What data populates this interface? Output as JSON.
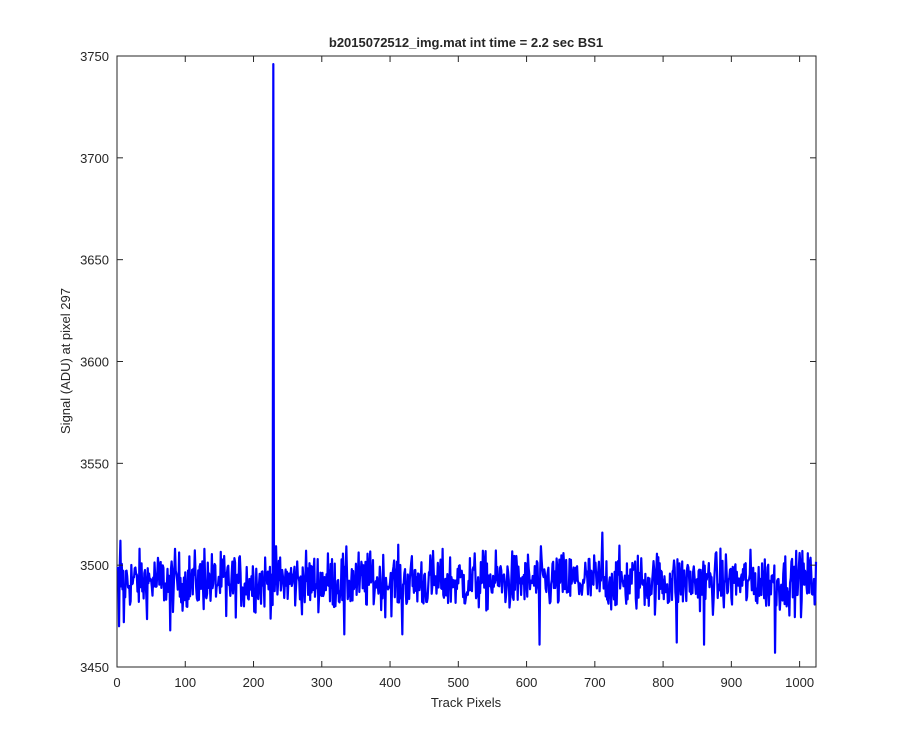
{
  "chart_data": {
    "type": "line",
    "title": "b2015072512_img.mat int time = 2.2 sec   BS1",
    "xlabel": "Track Pixels",
    "ylabel": "Signal (ADU) at pixel 297",
    "xlim": [
      0,
      1024
    ],
    "ylim": [
      3450,
      3750
    ],
    "xticks": [
      0,
      100,
      200,
      300,
      400,
      500,
      600,
      700,
      800,
      900,
      1000
    ],
    "yticks": [
      3450,
      3500,
      3550,
      3600,
      3650,
      3700,
      3750
    ],
    "grid": false,
    "line_color": "#0000ff",
    "axis_color": "#262626",
    "series": [
      {
        "x_start": 1,
        "x_step": 1,
        "baseline": 3492,
        "noise_amplitude": 10,
        "spike": {
          "x": 229,
          "y": 3746
        },
        "sampled_extremes": [
          {
            "x": 3,
            "y": 3470
          },
          {
            "x": 5,
            "y": 3512
          },
          {
            "x": 10,
            "y": 3472
          },
          {
            "x": 78,
            "y": 3468
          },
          {
            "x": 128,
            "y": 3508
          },
          {
            "x": 160,
            "y": 3475
          },
          {
            "x": 333,
            "y": 3466
          },
          {
            "x": 418,
            "y": 3466
          },
          {
            "x": 619,
            "y": 3461
          },
          {
            "x": 711,
            "y": 3516
          },
          {
            "x": 820,
            "y": 3462
          },
          {
            "x": 860,
            "y": 3461
          },
          {
            "x": 964,
            "y": 3457
          },
          {
            "x": 1000,
            "y": 3506
          }
        ]
      }
    ]
  }
}
